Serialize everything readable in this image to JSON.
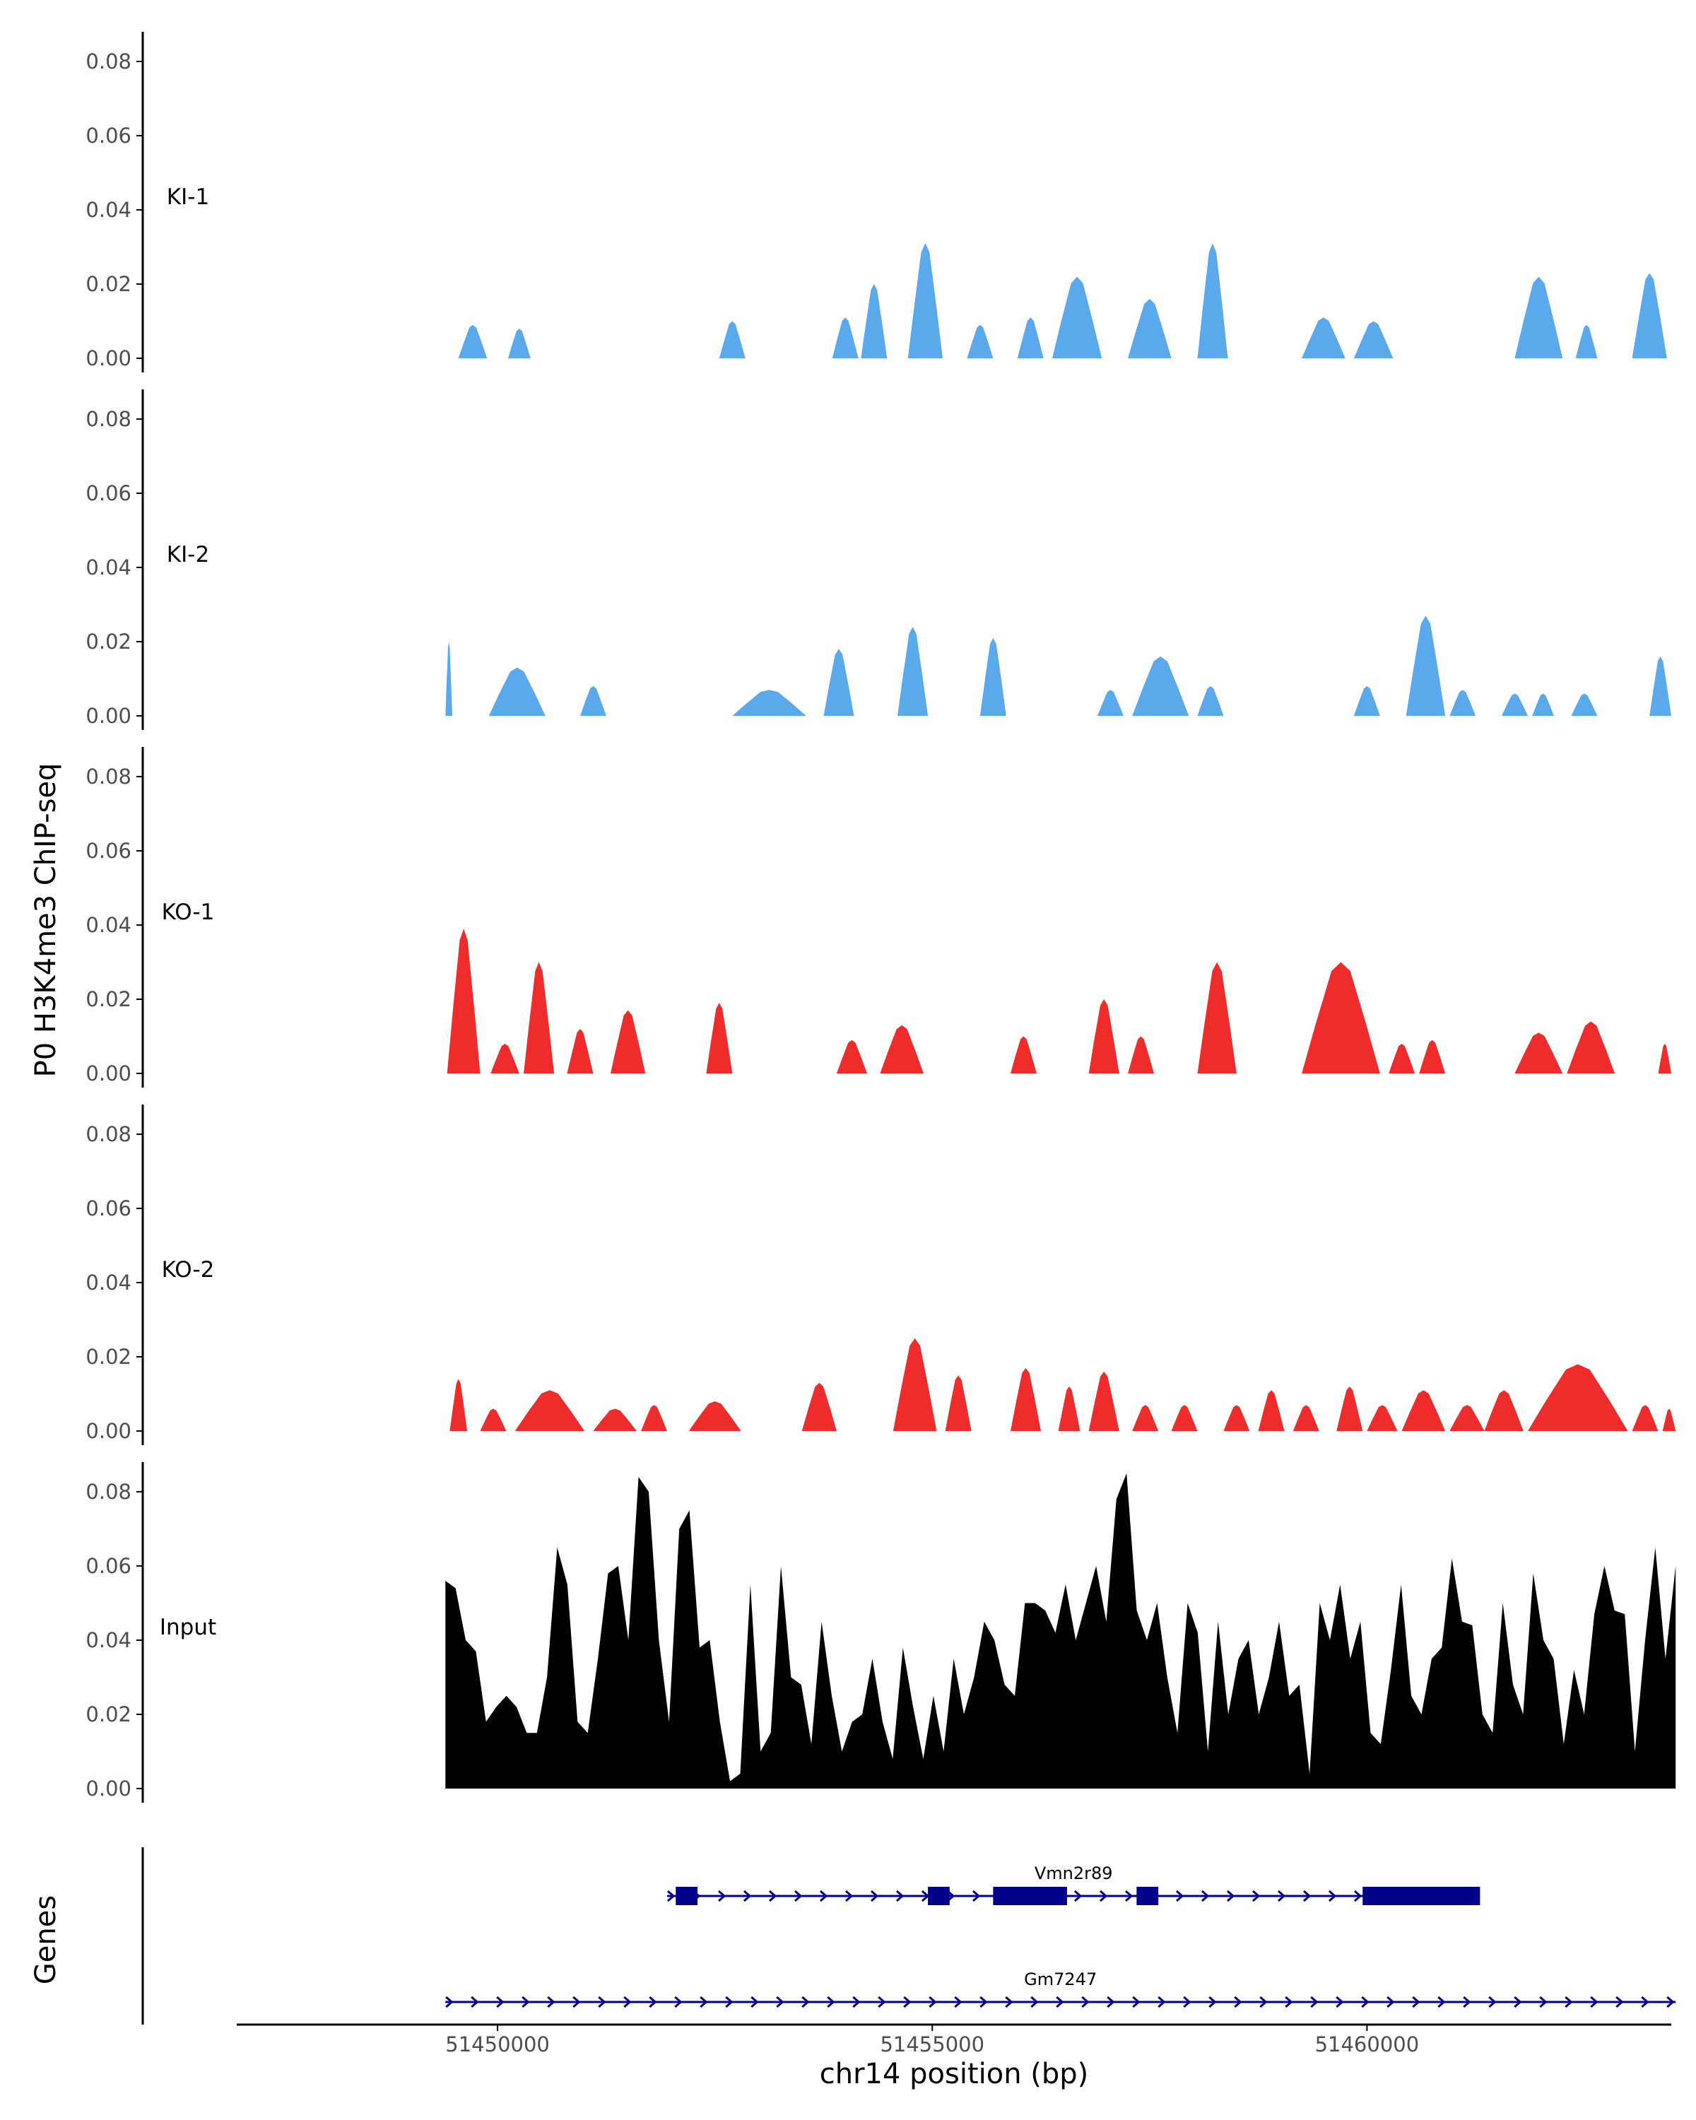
{
  "chart_data": {
    "type": "area",
    "ylabel": "P0 H3K4me3 ChIP-seq",
    "xlabel": "chr14 position (bp)",
    "xlim": [
      51447000,
      51463500
    ],
    "ylim": [
      0,
      0.085
    ],
    "yticks": [
      0.0,
      0.02,
      0.04,
      0.06,
      0.08
    ],
    "ytick_labels": [
      "0.00",
      "0.02",
      "0.04",
      "0.06",
      "0.08"
    ],
    "xticks": [
      51450000,
      51455000,
      51460000
    ],
    "xtick_labels": [
      "51450000",
      "51455000",
      "51460000"
    ],
    "colors": {
      "KI": "#5aa9ea",
      "KO": "#ee2c2c",
      "Input": "#000000",
      "gene": "#00008b"
    },
    "series": [
      {
        "name": "KI-1",
        "color": "#5aa9ea",
        "peaks": [
          [
            51449550,
            51449880,
            0.009
          ],
          [
            51450120,
            51450380,
            0.008
          ],
          [
            51452550,
            51452850,
            0.01
          ],
          [
            51453850,
            51454150,
            0.011
          ],
          [
            51454180,
            51454480,
            0.02
          ],
          [
            51454720,
            51455120,
            0.031
          ],
          [
            51455400,
            51455700,
            0.009
          ],
          [
            51455980,
            51456280,
            0.011
          ],
          [
            51456380,
            51456950,
            0.022
          ],
          [
            51457250,
            51457750,
            0.016
          ],
          [
            51458050,
            51458400,
            0.031
          ],
          [
            51459250,
            51459750,
            0.011
          ],
          [
            51459850,
            51460300,
            0.01
          ],
          [
            51461700,
            51462250,
            0.022
          ],
          [
            51462400,
            51462650,
            0.009
          ],
          [
            51463050,
            51463450,
            0.023
          ]
        ]
      },
      {
        "name": "KI-2",
        "color": "#5aa9ea",
        "peaks": [
          [
            51449400,
            51449480,
            0.02
          ],
          [
            51449900,
            51450550,
            0.013
          ],
          [
            51450950,
            51451250,
            0.008
          ],
          [
            51452700,
            51453550,
            0.007
          ],
          [
            51453750,
            51454100,
            0.018
          ],
          [
            51454600,
            51454950,
            0.024
          ],
          [
            51455550,
            51455850,
            0.021
          ],
          [
            51456900,
            51457200,
            0.007
          ],
          [
            51457300,
            51457950,
            0.016
          ],
          [
            51458050,
            51458350,
            0.008
          ],
          [
            51459850,
            51460150,
            0.008
          ],
          [
            51460450,
            51460900,
            0.027
          ],
          [
            51460950,
            51461250,
            0.007
          ],
          [
            51461550,
            51461850,
            0.006
          ],
          [
            51461900,
            51462150,
            0.006
          ],
          [
            51462350,
            51462650,
            0.006
          ],
          [
            51463250,
            51463500,
            0.016
          ]
        ]
      },
      {
        "name": "KO-1",
        "color": "#ee2c2c",
        "peaks": [
          [
            51449420,
            51449800,
            0.039
          ],
          [
            51449920,
            51450250,
            0.008
          ],
          [
            51450300,
            51450650,
            0.03
          ],
          [
            51450800,
            51451100,
            0.012
          ],
          [
            51451300,
            51451700,
            0.017
          ],
          [
            51452400,
            51452700,
            0.019
          ],
          [
            51453900,
            51454250,
            0.009
          ],
          [
            51454400,
            51454900,
            0.013
          ],
          [
            51455900,
            51456200,
            0.01
          ],
          [
            51456800,
            51457150,
            0.02
          ],
          [
            51457250,
            51457550,
            0.01
          ],
          [
            51458050,
            51458500,
            0.03
          ],
          [
            51459250,
            51460150,
            0.03
          ],
          [
            51460250,
            51460550,
            0.008
          ],
          [
            51460600,
            51460900,
            0.009
          ],
          [
            51461700,
            51462250,
            0.011
          ],
          [
            51462300,
            51462850,
            0.014
          ],
          [
            51463350,
            51463500,
            0.008
          ]
        ]
      },
      {
        "name": "KO-2",
        "color": "#ee2c2c",
        "peaks": [
          [
            51449450,
            51449650,
            0.014
          ],
          [
            51449800,
            51450100,
            0.006
          ],
          [
            51450200,
            51451000,
            0.011
          ],
          [
            51451100,
            51451600,
            0.006
          ],
          [
            51451650,
            51451950,
            0.007
          ],
          [
            51452200,
            51452800,
            0.008
          ],
          [
            51453500,
            51453900,
            0.013
          ],
          [
            51454550,
            51455050,
            0.025
          ],
          [
            51455150,
            51455450,
            0.015
          ],
          [
            51455900,
            51456250,
            0.017
          ],
          [
            51456450,
            51456700,
            0.012
          ],
          [
            51456800,
            51457150,
            0.016
          ],
          [
            51457300,
            51457600,
            0.007
          ],
          [
            51457750,
            51458050,
            0.007
          ],
          [
            51458350,
            51458650,
            0.007
          ],
          [
            51458750,
            51459050,
            0.011
          ],
          [
            51459150,
            51459450,
            0.007
          ],
          [
            51459650,
            51459950,
            0.012
          ],
          [
            51460000,
            51460350,
            0.007
          ],
          [
            51460400,
            51460900,
            0.011
          ],
          [
            51460950,
            51461350,
            0.007
          ],
          [
            51461350,
            51461800,
            0.011
          ],
          [
            51461850,
            51463000,
            0.018
          ],
          [
            51463050,
            51463350,
            0.007
          ],
          [
            51463400,
            51463550,
            0.006
          ]
        ]
      },
      {
        "name": "Input",
        "color": "#000000",
        "x_start": 51449400,
        "x_end": 51463550,
        "values": [
          0.056,
          0.054,
          0.04,
          0.037,
          0.018,
          0.022,
          0.025,
          0.022,
          0.015,
          0.015,
          0.03,
          0.065,
          0.055,
          0.018,
          0.015,
          0.035,
          0.058,
          0.06,
          0.04,
          0.084,
          0.08,
          0.04,
          0.018,
          0.07,
          0.075,
          0.038,
          0.04,
          0.018,
          0.002,
          0.004,
          0.055,
          0.01,
          0.015,
          0.06,
          0.03,
          0.028,
          0.012,
          0.045,
          0.025,
          0.01,
          0.018,
          0.02,
          0.035,
          0.018,
          0.008,
          0.038,
          0.022,
          0.008,
          0.025,
          0.01,
          0.035,
          0.02,
          0.03,
          0.045,
          0.04,
          0.028,
          0.025,
          0.05,
          0.05,
          0.048,
          0.042,
          0.055,
          0.04,
          0.05,
          0.06,
          0.045,
          0.078,
          0.085,
          0.048,
          0.04,
          0.05,
          0.03,
          0.015,
          0.05,
          0.042,
          0.01,
          0.045,
          0.02,
          0.035,
          0.04,
          0.02,
          0.03,
          0.045,
          0.025,
          0.028,
          0.004,
          0.05,
          0.04,
          0.055,
          0.035,
          0.045,
          0.015,
          0.012,
          0.032,
          0.055,
          0.025,
          0.02,
          0.035,
          0.038,
          0.062,
          0.045,
          0.044,
          0.02,
          0.015,
          0.05,
          0.028,
          0.02,
          0.058,
          0.04,
          0.035,
          0.012,
          0.032,
          0.02,
          0.047,
          0.06,
          0.048,
          0.047,
          0.01,
          0.04,
          0.065,
          0.035,
          0.06
        ]
      }
    ],
    "genes_label": "Genes",
    "genes": [
      {
        "name": "Vmn2r89",
        "start": 51451950,
        "end": 51461300,
        "exons": [
          [
            51452050,
            51452300
          ],
          [
            51454950,
            51455200
          ],
          [
            51455700,
            51456550
          ],
          [
            51457350,
            51457600
          ],
          [
            51459950,
            51461300
          ]
        ]
      },
      {
        "name": "Gm7247",
        "start": 51449400,
        "end": 51463550,
        "exons": []
      }
    ]
  }
}
